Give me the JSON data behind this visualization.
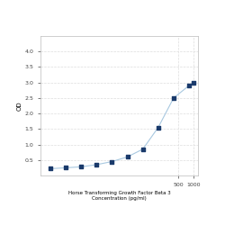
{
  "x": [
    1.5625,
    3.125,
    6.25,
    12.5,
    25,
    50,
    100,
    200,
    400,
    800,
    1000
  ],
  "y": [
    0.22,
    0.25,
    0.28,
    0.35,
    0.45,
    0.6,
    0.85,
    1.55,
    2.5,
    2.9,
    3.0
  ],
  "title_line1": "Horse Transforming Growth Factor Beta 3",
  "title_line2": "Concentration (pg/ml)",
  "ylabel": "OD",
  "line_color": "#a8c8e0",
  "marker_color": "#1a3a6b",
  "marker_size": 3,
  "ylim": [
    0,
    4.5
  ],
  "yticks": [
    0.5,
    1.0,
    1.5,
    2.0,
    2.5,
    3.0,
    3.5,
    4.0
  ],
  "xlim_min": 1,
  "xlim_max": 1200,
  "bg_color": "#ffffff",
  "grid_color": "#dddddd"
}
